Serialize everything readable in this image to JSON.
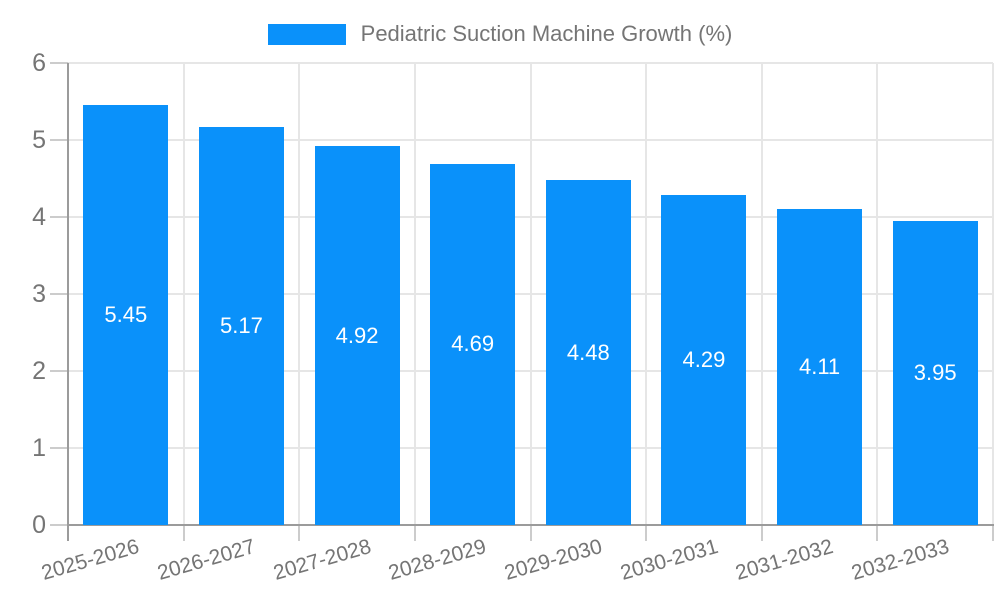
{
  "legend": {
    "label": "Pediatric Suction Machine Growth (%)"
  },
  "colors": {
    "bar": "#0a91fa",
    "grid": "#e6e6e6",
    "axis": "#9b9b9b",
    "tick": "#cccccc",
    "text": "#757575",
    "value_text": "#ffffff",
    "background": "#ffffff"
  },
  "chart_data": {
    "type": "bar",
    "title": "Pediatric Suction Machine Growth (%)",
    "series_name": "Pediatric Suction Machine Growth (%)",
    "categories": [
      "2025-2026",
      "2026-2027",
      "2027-2028",
      "2028-2029",
      "2029-2030",
      "2030-2031",
      "2031-2032",
      "2032-2033"
    ],
    "values": [
      5.45,
      5.17,
      4.92,
      4.69,
      4.48,
      4.29,
      4.11,
      3.95
    ],
    "value_format": "2-decimals",
    "xlabel": "",
    "ylabel": "",
    "ylim": [
      0,
      6
    ],
    "yticks": [
      0,
      1,
      2,
      3,
      4,
      5,
      6
    ],
    "grid": true,
    "legend_position": "top-center",
    "value_label_position": "inside-center",
    "x_tick_rotation_deg": -16
  }
}
